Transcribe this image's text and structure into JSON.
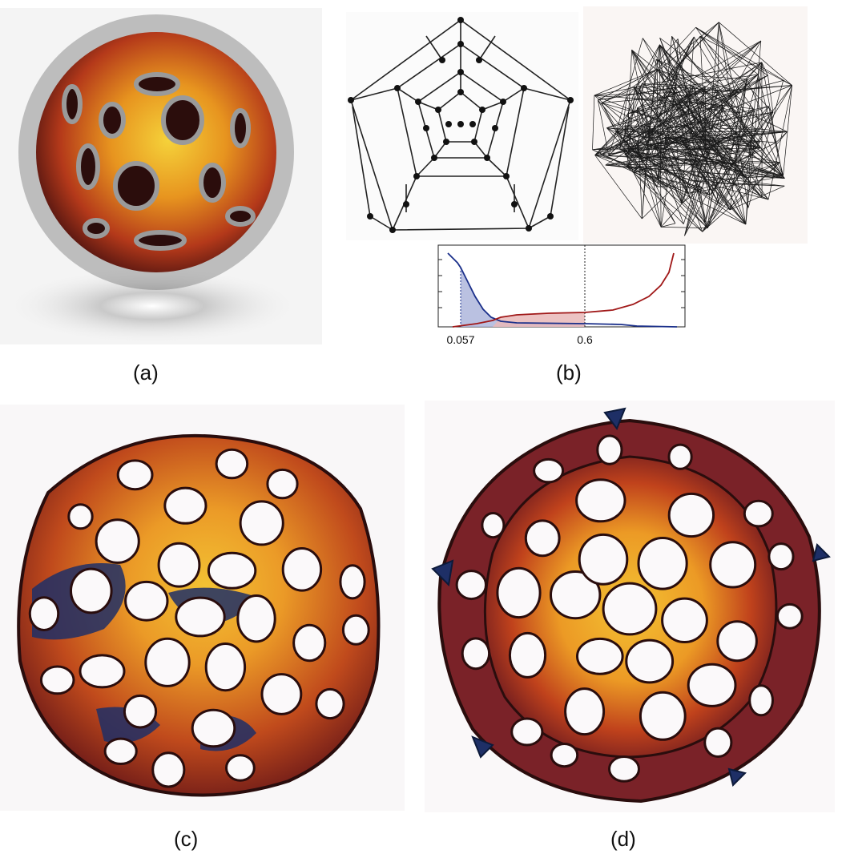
{
  "captions": {
    "a": "(a)",
    "b": "(b)",
    "c": "(c)",
    "d": "(d)"
  },
  "plot_b": {
    "x_ticks": [
      "0.057",
      "0.6"
    ],
    "colors": {
      "blue": "#1a2f8a",
      "red": "#a01818",
      "blue_fill": "#aeb6dc",
      "red_fill": "#e9b9b9"
    }
  },
  "palette": {
    "yellow": "#f3c233",
    "orange": "#e8801f",
    "red": "#a8281c",
    "dark_red": "#5a1414",
    "navy": "#1e2f66",
    "purple": "#5a3a6a"
  }
}
